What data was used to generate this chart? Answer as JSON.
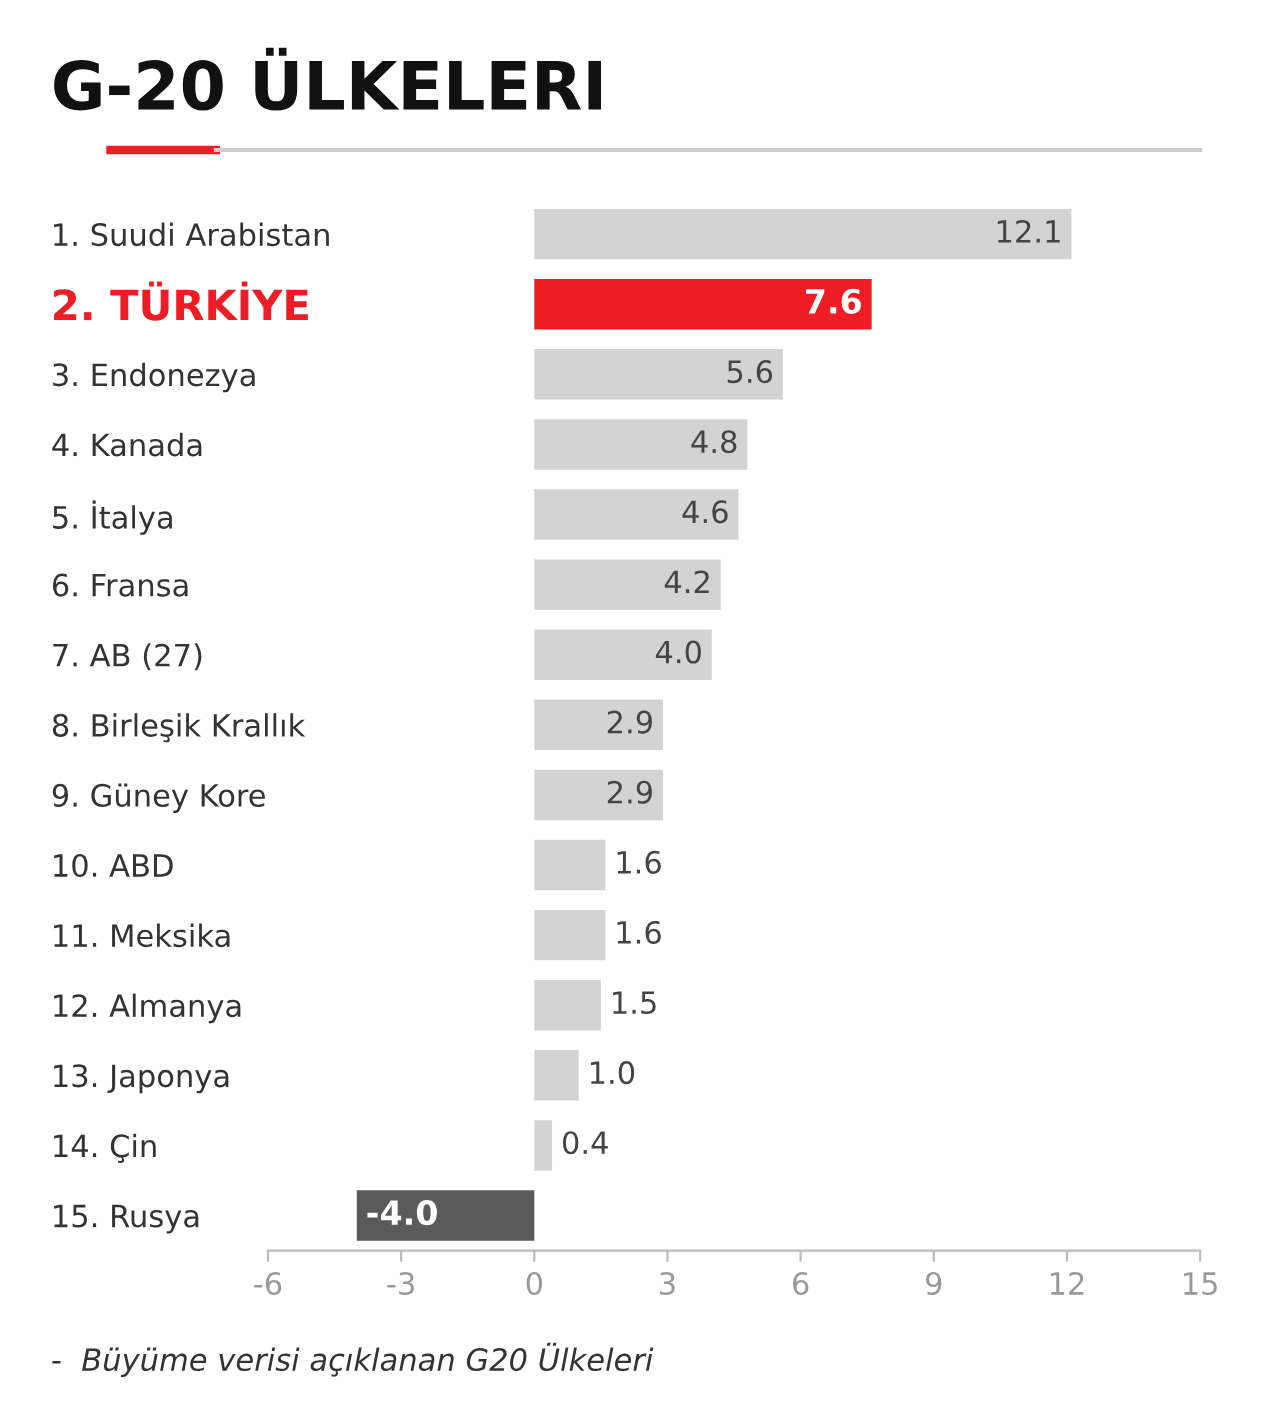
{
  "chart_data": {
    "type": "bar",
    "orientation": "horizontal",
    "title": "G-20 ÜLKELERI",
    "categories": [
      "1. Suudi Arabistan",
      "2. TÜRKİYE",
      "3. Endonezya",
      "4. Kanada",
      "5. İtalya",
      "6. Fransa",
      "7. AB (27)",
      "8. Birleşik Krallık",
      "9. Güney Kore",
      "10. ABD",
      "11. Meksika",
      "12. Almanya",
      "13. Japonya",
      "14. Çin",
      "15. Rusya"
    ],
    "values": [
      12.1,
      7.6,
      5.6,
      4.8,
      4.6,
      4.2,
      4.0,
      2.9,
      2.9,
      1.6,
      1.6,
      1.5,
      1.0,
      0.4,
      -4.0
    ],
    "colors": [
      "#d3d3d3",
      "#ee1c25",
      "#d3d3d3",
      "#d3d3d3",
      "#d3d3d3",
      "#d3d3d3",
      "#d3d3d3",
      "#d3d3d3",
      "#d3d3d3",
      "#d3d3d3",
      "#d3d3d3",
      "#d3d3d3",
      "#d3d3d3",
      "#d3d3d3",
      "#5a5a5a"
    ],
    "xlim": [
      -6,
      15
    ],
    "xticks": [
      {
        "value": -6,
        "label": "-6"
      },
      {
        "value": -3,
        "label": "-3"
      },
      0,
      3,
      6,
      9,
      12,
      15
    ],
    "value_labels": [
      "12.1",
      "7.6",
      "5.6",
      "4.8",
      "4.6",
      "4.2",
      "4.0",
      "2.9",
      "2.9",
      "1.6",
      "1.6",
      "1.5",
      "1.0",
      "0.4",
      "-4.0"
    ],
    "grid": false,
    "legend": false,
    "annotations": [
      "-  Büyüme verisi açıklanan G20 Ülkeleri"
    ]
  }
}
